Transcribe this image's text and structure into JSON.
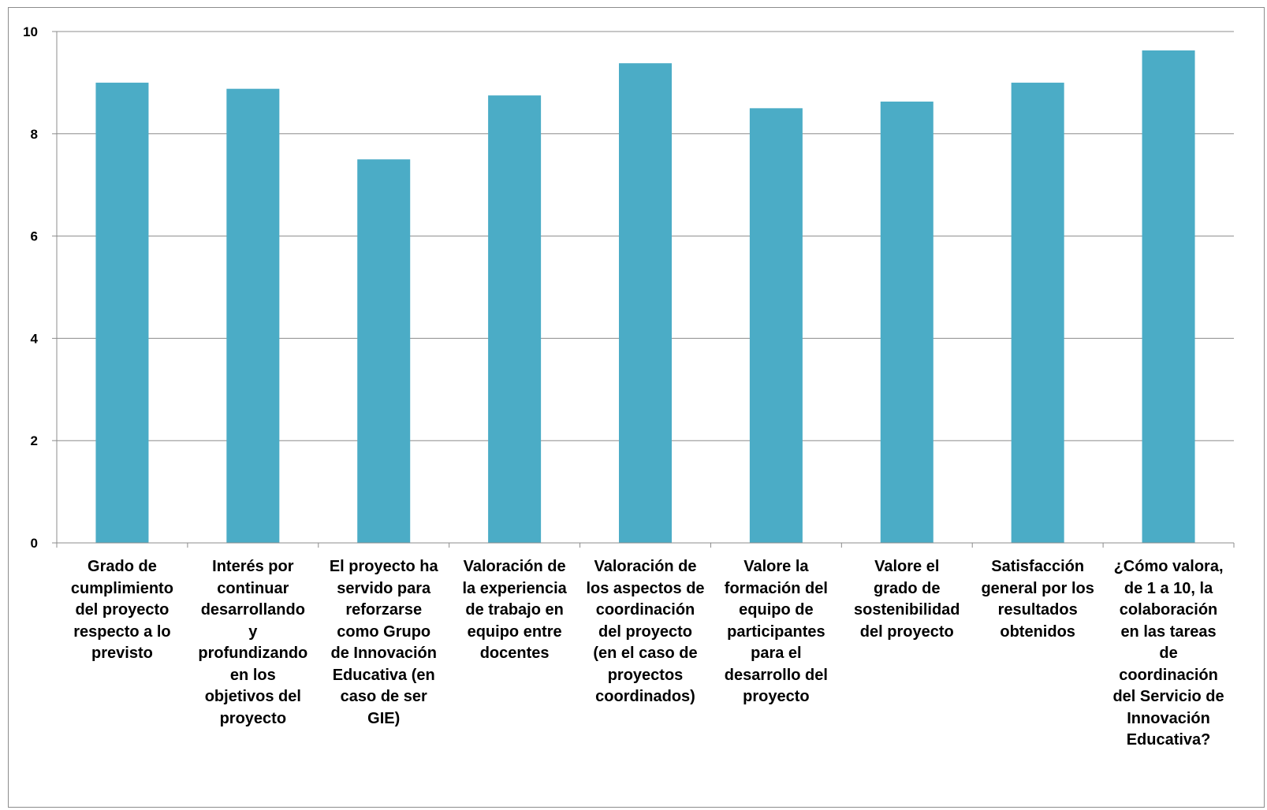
{
  "chart_data": {
    "type": "bar",
    "categories": [
      "Grado de\ncumplimiento\ndel proyecto\nrespecto a lo\nprevisto",
      "Interés por\ncontinuar\ndesarrollando\ny\nprofundizando\nen los\nobjetivos del\nproyecto",
      "El proyecto ha\nservido para\nreforzarse\ncomo Grupo\nde Innovación\nEducativa (en\ncaso de ser\nGIE)",
      "Valoración de\nla experiencia\nde trabajo en\nequipo entre\ndocentes",
      "Valoración de\nlos aspectos de\ncoordinación\ndel proyecto\n(en el caso de\nproyectos\ncoordinados)",
      "Valore la\nformación del\nequipo de\nparticipantes\npara el\ndesarrollo del\nproyecto",
      "Valore el\ngrado de\nsostenibilidad\ndel proyecto",
      "Satisfacción\ngeneral por los\nresultados\nobtenidos",
      "¿Cómo valora,\nde 1 a 10, la\ncolaboración\nen las tareas\nde\ncoordinación\ndel Servicio de\nInnovación\nEducativa?"
    ],
    "values": [
      9.0,
      8.88,
      7.5,
      8.75,
      9.38,
      8.5,
      8.63,
      9.0,
      9.63
    ],
    "yticks": [
      "0",
      "2",
      "4",
      "6",
      "8",
      "10"
    ],
    "ylim": [
      0,
      10
    ],
    "title": "",
    "xlabel": "",
    "ylabel": "",
    "bar_color": "#4bacc6",
    "grid": true,
    "legend": "none"
  }
}
